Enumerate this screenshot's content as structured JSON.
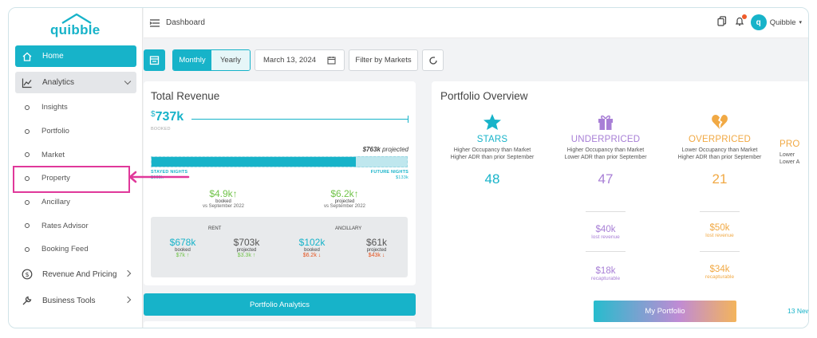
{
  "brand": {
    "name": "quibble",
    "color": "#17b3c9"
  },
  "sidebar": {
    "home": {
      "label": "Home",
      "icon": "home-icon"
    },
    "analytics": {
      "label": "Analytics",
      "icon": "chart-icon"
    },
    "sub_items": [
      {
        "label": "Insights"
      },
      {
        "label": "Portfolio"
      },
      {
        "label": "Market"
      },
      {
        "label": "Property"
      },
      {
        "label": "Ancillary"
      },
      {
        "label": "Rates Advisor"
      },
      {
        "label": "Booking Feed"
      }
    ],
    "revenue_pricing": {
      "label": "Revenue And Pricing",
      "icon": "dollar-circle-icon"
    },
    "business_tools": {
      "label": "Business Tools",
      "icon": "wrench-icon"
    }
  },
  "topbar": {
    "title": "Dashboard",
    "user": "Quibble",
    "avatar_letter": "q"
  },
  "controls": {
    "monthly": "Monthly",
    "yearly": "Yearly",
    "date": "March 13, 2024",
    "filter": "Filter by Markets"
  },
  "total_revenue": {
    "title": "Total Revenue",
    "booked_value": "737k",
    "booked_label": "BOOKED",
    "projected_value": "763k",
    "projected_suffix": "projected",
    "progress": {
      "stayed_fraction": 0.8
    },
    "stayed": {
      "label": "STAYED NIGHTS",
      "value": "$605k"
    },
    "future": {
      "label": "FUTURE NIGHTS",
      "value": "$133k"
    },
    "booked_delta": {
      "value": "$4.9k",
      "label": "booked",
      "sub": "vs September 2022"
    },
    "projected_delta": {
      "value": "$6.2k",
      "label": "projected",
      "sub": "vs September 2022"
    },
    "rent": {
      "title": "RENT",
      "booked": {
        "value": "$678k",
        "label": "booked",
        "delta": "$7k"
      },
      "projected": {
        "value": "$703k",
        "label": "projected",
        "delta": "$3.3k"
      }
    },
    "ancillary": {
      "title": "ANCILLARY",
      "booked": {
        "value": "$102k",
        "label": "booked",
        "delta": "$6.2k"
      },
      "projected": {
        "value": "$61k",
        "label": "projected",
        "delta": "$43k"
      }
    }
  },
  "portfolio_analytics_button": "Portfolio Analytics",
  "portfolio_overview": {
    "title": "Portfolio Overview",
    "segments": [
      {
        "name": "STARS",
        "desc1": "Higher Occupancy than Market",
        "desc2": "Higher ADR than prior September",
        "count": "48",
        "color": "#17b3c9",
        "icon": "star-icon"
      },
      {
        "name": "UNDERPRICED",
        "desc1": "Higher Occupancy than Market",
        "desc2": "Lower ADR than prior September",
        "count": "47",
        "color": "#a87fd6",
        "icon": "gift-icon"
      },
      {
        "name": "OVERPRICED",
        "desc1": "Lower Occupancy than Market",
        "desc2": "Higher ADR than prior September",
        "count": "21",
        "color": "#f1a944",
        "icon": "broken-heart-icon"
      },
      {
        "name": "PRO",
        "desc1": "Lower",
        "desc2": "Lower A",
        "count": "",
        "color": "#f1a944",
        "icon": ""
      }
    ],
    "underpriced_lost": {
      "value": "$40k",
      "label": "lost revenue"
    },
    "underpriced_recap": {
      "value": "$18k",
      "label": "recapturable"
    },
    "overpriced_lost": {
      "value": "$50k",
      "label": "lost revenue"
    },
    "overpriced_recap": {
      "value": "$34k",
      "label": "recapturable"
    },
    "my_portfolio": "My Portfolio",
    "footer_link": "13 New"
  }
}
